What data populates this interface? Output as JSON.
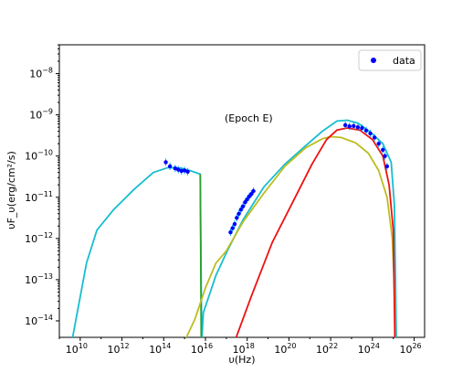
{
  "chart_data": {
    "type": "scatter",
    "annotation": "(Epoch E)",
    "xlabel": "υ(Hz)",
    "ylabel": "υF_υ(erg/cm²/s)",
    "x_scale": "log",
    "y_scale": "log",
    "xlim_log10": [
      9,
      26.5
    ],
    "ylim_log10": [
      -14.4,
      -7.3
    ],
    "x_ticks": [
      {
        "exp": 10,
        "label": "10",
        "sup": "10"
      },
      {
        "exp": 12,
        "label": "10",
        "sup": "12"
      },
      {
        "exp": 14,
        "label": "10",
        "sup": "14"
      },
      {
        "exp": 16,
        "label": "10",
        "sup": "16"
      },
      {
        "exp": 18,
        "label": "10",
        "sup": "18"
      },
      {
        "exp": 20,
        "label": "10",
        "sup": "20"
      },
      {
        "exp": 22,
        "label": "10",
        "sup": "22"
      },
      {
        "exp": 24,
        "label": "10",
        "sup": "24"
      },
      {
        "exp": 26,
        "label": "10",
        "sup": "26"
      }
    ],
    "y_ticks": [
      {
        "exp": -14,
        "label": "10",
        "sup": "−14"
      },
      {
        "exp": -13,
        "label": "10",
        "sup": "−13"
      },
      {
        "exp": -12,
        "label": "10",
        "sup": "−12"
      },
      {
        "exp": -11,
        "label": "10",
        "sup": "−11"
      },
      {
        "exp": -10,
        "label": "10",
        "sup": "−10"
      },
      {
        "exp": -9,
        "label": "10",
        "sup": "−9"
      },
      {
        "exp": -8,
        "label": "10",
        "sup": "−8"
      }
    ],
    "legend": {
      "position": "top-right",
      "entries": [
        {
          "label": "data",
          "color": "#0000ff",
          "marker": "dot"
        }
      ]
    },
    "colors": {
      "data": "#0000ff",
      "errorbar": "#00aaff",
      "total": "#17becf",
      "synchrotron": "#2ca02c",
      "ssc": "#bcbd22",
      "ec": "#ee1111"
    },
    "data_points_log10": [
      [
        14.1,
        -10.15
      ],
      [
        14.3,
        -10.25
      ],
      [
        14.55,
        -10.3
      ],
      [
        14.7,
        -10.33
      ],
      [
        14.85,
        -10.36
      ],
      [
        15.0,
        -10.35
      ],
      [
        15.15,
        -10.38
      ],
      [
        17.2,
        -11.85
      ],
      [
        17.3,
        -11.75
      ],
      [
        17.4,
        -11.65
      ],
      [
        17.5,
        -11.5
      ],
      [
        17.6,
        -11.4
      ],
      [
        17.7,
        -11.3
      ],
      [
        17.8,
        -11.22
      ],
      [
        17.9,
        -11.12
      ],
      [
        18.0,
        -11.05
      ],
      [
        18.1,
        -10.98
      ],
      [
        18.2,
        -10.92
      ],
      [
        18.3,
        -10.85
      ],
      [
        22.7,
        -9.25
      ],
      [
        22.9,
        -9.28
      ],
      [
        23.1,
        -9.27
      ],
      [
        23.3,
        -9.3
      ],
      [
        23.5,
        -9.32
      ],
      [
        23.7,
        -9.38
      ],
      [
        23.9,
        -9.45
      ],
      [
        24.1,
        -9.55
      ],
      [
        24.3,
        -9.7
      ],
      [
        24.5,
        -9.85
      ],
      [
        24.6,
        -10.0
      ],
      [
        24.7,
        -10.25
      ]
    ],
    "series": [
      {
        "name": "",
        "color": "#17becf",
        "points_log10": [
          [
            9.6,
            -14.5
          ],
          [
            10.3,
            -12.6
          ],
          [
            10.8,
            -11.8
          ],
          [
            11.6,
            -11.3
          ],
          [
            12.6,
            -10.8
          ],
          [
            13.5,
            -10.4
          ],
          [
            14.2,
            -10.28
          ],
          [
            14.8,
            -10.29
          ],
          [
            15.3,
            -10.36
          ],
          [
            15.75,
            -10.44
          ],
          [
            15.82,
            -14.5
          ],
          [
            15.9,
            -13.8
          ],
          [
            16.5,
            -12.9
          ],
          [
            17.0,
            -12.35
          ],
          [
            17.8,
            -11.55
          ],
          [
            18.8,
            -10.75
          ],
          [
            19.8,
            -10.2
          ],
          [
            20.8,
            -9.75
          ],
          [
            21.6,
            -9.4
          ],
          [
            22.3,
            -9.15
          ],
          [
            22.8,
            -9.13
          ],
          [
            23.3,
            -9.2
          ],
          [
            23.9,
            -9.42
          ],
          [
            24.5,
            -9.7
          ],
          [
            24.9,
            -10.15
          ],
          [
            25.05,
            -11.2
          ],
          [
            25.15,
            -14.5
          ]
        ]
      },
      {
        "name": "",
        "color": "#2ca02c",
        "points_log10": [
          [
            15.75,
            -10.44
          ],
          [
            15.8,
            -14.5
          ]
        ]
      },
      {
        "name": "",
        "color": "#bcbd22",
        "points_log10": [
          [
            15.0,
            -14.5
          ],
          [
            15.5,
            -13.95
          ],
          [
            16.0,
            -13.2
          ],
          [
            16.5,
            -12.6
          ],
          [
            17.0,
            -12.3
          ],
          [
            17.8,
            -11.6
          ],
          [
            18.8,
            -10.9
          ],
          [
            19.8,
            -10.25
          ],
          [
            20.8,
            -9.8
          ],
          [
            21.6,
            -9.58
          ],
          [
            22.0,
            -9.53
          ],
          [
            22.5,
            -9.55
          ],
          [
            23.2,
            -9.68
          ],
          [
            23.8,
            -9.93
          ],
          [
            24.3,
            -10.35
          ],
          [
            24.7,
            -11.0
          ],
          [
            24.95,
            -12.0
          ],
          [
            25.05,
            -13.2
          ],
          [
            25.1,
            -14.5
          ]
        ]
      },
      {
        "name": "",
        "color": "#ee1111",
        "points_log10": [
          [
            17.4,
            -14.5
          ],
          [
            18.2,
            -13.4
          ],
          [
            19.2,
            -12.1
          ],
          [
            20.2,
            -11.1
          ],
          [
            21.1,
            -10.2
          ],
          [
            21.8,
            -9.6
          ],
          [
            22.3,
            -9.37
          ],
          [
            22.8,
            -9.32
          ],
          [
            23.4,
            -9.37
          ],
          [
            24.0,
            -9.6
          ],
          [
            24.5,
            -10.0
          ],
          [
            24.8,
            -10.7
          ],
          [
            25.0,
            -11.8
          ],
          [
            25.08,
            -14.5
          ]
        ]
      }
    ]
  }
}
